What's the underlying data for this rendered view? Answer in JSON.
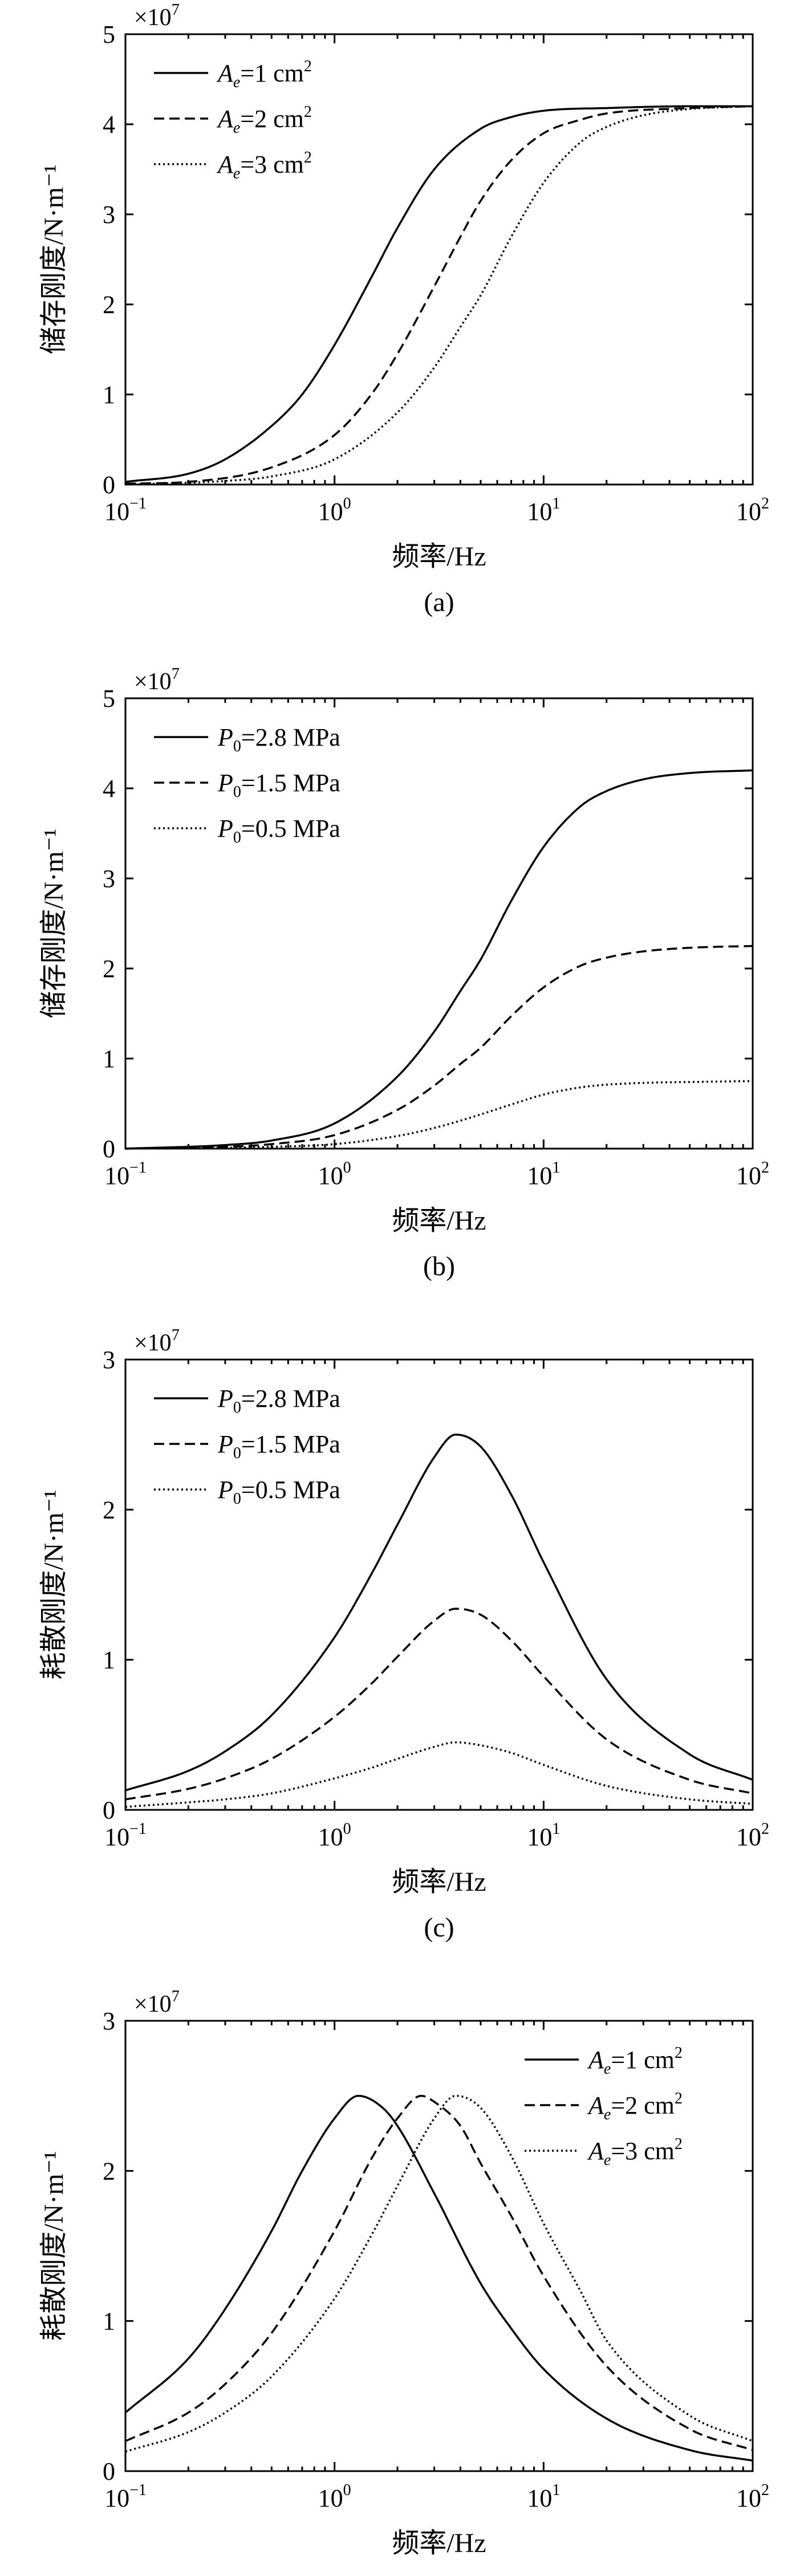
{
  "chart_data": [
    {
      "id": "a",
      "type": "line",
      "caption": "(a)",
      "xlabel": "频率/Hz",
      "ylabel": "储存刚度/N·m⁻¹",
      "y_multiplier": "×10",
      "y_multiplier_exp": "7",
      "xscale": "log",
      "xlim": [
        0.1,
        100
      ],
      "ylim": [
        0,
        5
      ],
      "xticks": [
        {
          "base": "10",
          "exp": "−1"
        },
        {
          "base": "10",
          "exp": "0"
        },
        {
          "base": "10",
          "exp": "1"
        },
        {
          "base": "10",
          "exp": "2"
        }
      ],
      "yticks": [
        "0",
        "1",
        "2",
        "3",
        "4",
        "5"
      ],
      "legend_position": "top-left",
      "series": [
        {
          "name_var": "A",
          "name_sub": "e",
          "name_rest": "=1 cm",
          "name_sup": "2",
          "style": "solid",
          "x": [
            0.1,
            0.2,
            0.3,
            0.5,
            0.7,
            1,
            1.5,
            2,
            3,
            5,
            7,
            10,
            20,
            50,
            100
          ],
          "y": [
            0.03,
            0.12,
            0.28,
            0.65,
            1.0,
            1.55,
            2.3,
            2.85,
            3.5,
            3.95,
            4.08,
            4.15,
            4.18,
            4.2,
            4.2
          ]
        },
        {
          "name_var": "A",
          "name_sub": "e",
          "name_rest": "=2 cm",
          "name_sup": "2",
          "style": "dashed",
          "x": [
            0.1,
            0.2,
            0.5,
            1,
            1.5,
            2,
            3,
            4,
            5,
            7,
            10,
            15,
            20,
            50,
            100
          ],
          "y": [
            0.01,
            0.03,
            0.19,
            0.55,
            1.0,
            1.45,
            2.2,
            2.75,
            3.15,
            3.6,
            3.9,
            4.05,
            4.12,
            4.18,
            4.2
          ]
        },
        {
          "name_var": "A",
          "name_sub": "e",
          "name_rest": "=3 cm",
          "name_sup": "2",
          "style": "dotted",
          "x": [
            0.1,
            0.3,
            0.5,
            1,
            2,
            3,
            4,
            5,
            7,
            10,
            15,
            20,
            30,
            50,
            100
          ],
          "y": [
            0.0,
            0.04,
            0.09,
            0.28,
            0.8,
            1.3,
            1.75,
            2.1,
            2.75,
            3.35,
            3.8,
            3.97,
            4.1,
            4.17,
            4.2
          ]
        }
      ]
    },
    {
      "id": "b",
      "type": "line",
      "caption": "(b)",
      "xlabel": "频率/Hz",
      "ylabel": "储存刚度/N·m⁻¹",
      "y_multiplier": "×10",
      "y_multiplier_exp": "7",
      "xscale": "log",
      "xlim": [
        0.1,
        100
      ],
      "ylim": [
        0,
        5
      ],
      "xticks": [
        {
          "base": "10",
          "exp": "−1"
        },
        {
          "base": "10",
          "exp": "0"
        },
        {
          "base": "10",
          "exp": "1"
        },
        {
          "base": "10",
          "exp": "2"
        }
      ],
      "yticks": [
        "0",
        "1",
        "2",
        "3",
        "4",
        "5"
      ],
      "legend_position": "top-left",
      "series": [
        {
          "name_var": "P",
          "name_sub": "0",
          "name_rest": "=2.8 MPa",
          "name_sup": "",
          "style": "solid",
          "x": [
            0.1,
            0.3,
            0.5,
            1,
            2,
            3,
            4,
            5,
            7,
            10,
            15,
            20,
            30,
            50,
            100
          ],
          "y": [
            0.0,
            0.04,
            0.09,
            0.28,
            0.8,
            1.3,
            1.75,
            2.1,
            2.75,
            3.35,
            3.8,
            3.97,
            4.1,
            4.17,
            4.2
          ]
        },
        {
          "name_var": "P",
          "name_sub": "0",
          "name_rest": "=1.5 MPa",
          "name_sup": "",
          "style": "dashed",
          "x": [
            0.1,
            0.3,
            0.5,
            1,
            2,
            3,
            4,
            5,
            7,
            10,
            15,
            20,
            30,
            50,
            100
          ],
          "y": [
            0.0,
            0.02,
            0.05,
            0.15,
            0.43,
            0.7,
            0.94,
            1.12,
            1.47,
            1.79,
            2.03,
            2.12,
            2.19,
            2.23,
            2.25
          ]
        },
        {
          "name_var": "P",
          "name_sub": "0",
          "name_rest": "=0.5 MPa",
          "name_sup": "",
          "style": "dotted",
          "x": [
            0.1,
            0.3,
            0.5,
            1,
            2,
            3,
            4,
            5,
            7,
            10,
            15,
            20,
            30,
            50,
            100
          ],
          "y": [
            0.0,
            0.01,
            0.02,
            0.05,
            0.14,
            0.23,
            0.31,
            0.38,
            0.49,
            0.6,
            0.68,
            0.71,
            0.73,
            0.74,
            0.75
          ]
        }
      ]
    },
    {
      "id": "c",
      "type": "line",
      "caption": "(c)",
      "xlabel": "频率/Hz",
      "ylabel": "耗散刚度/N·m⁻¹",
      "y_multiplier": "×10",
      "y_multiplier_exp": "7",
      "xscale": "log",
      "xlim": [
        0.1,
        100
      ],
      "ylim": [
        0,
        3
      ],
      "xticks": [
        {
          "base": "10",
          "exp": "−1"
        },
        {
          "base": "10",
          "exp": "0"
        },
        {
          "base": "10",
          "exp": "1"
        },
        {
          "base": "10",
          "exp": "2"
        }
      ],
      "yticks": [
        "0",
        "1",
        "2",
        "3"
      ],
      "legend_position": "top-left",
      "series": [
        {
          "name_var": "P",
          "name_sub": "0",
          "name_rest": "=2.8 MPa",
          "name_sup": "",
          "style": "solid",
          "x": [
            0.1,
            0.2,
            0.3,
            0.5,
            1,
            1.5,
            2,
            3,
            3.8,
            5,
            7,
            10,
            20,
            50,
            100
          ],
          "y": [
            0.13,
            0.26,
            0.39,
            0.63,
            1.15,
            1.57,
            1.9,
            2.35,
            2.5,
            2.42,
            2.1,
            1.65,
            0.87,
            0.37,
            0.2
          ]
        },
        {
          "name_var": "P",
          "name_sub": "0",
          "name_rest": "=1.5 MPa",
          "name_sup": "",
          "style": "dashed",
          "x": [
            0.1,
            0.2,
            0.3,
            0.5,
            1,
            1.5,
            2,
            3,
            3.8,
            5,
            7,
            10,
            20,
            50,
            100
          ],
          "y": [
            0.07,
            0.14,
            0.21,
            0.34,
            0.62,
            0.84,
            1.02,
            1.26,
            1.34,
            1.3,
            1.13,
            0.89,
            0.47,
            0.2,
            0.11
          ]
        },
        {
          "name_var": "P",
          "name_sub": "0",
          "name_rest": "=0.5 MPa",
          "name_sup": "",
          "style": "dotted",
          "x": [
            0.1,
            0.2,
            0.3,
            0.5,
            1,
            1.5,
            2,
            3,
            3.8,
            5,
            7,
            10,
            20,
            50,
            100
          ],
          "y": [
            0.02,
            0.05,
            0.07,
            0.11,
            0.21,
            0.28,
            0.34,
            0.42,
            0.45,
            0.43,
            0.38,
            0.3,
            0.16,
            0.07,
            0.04
          ]
        }
      ]
    },
    {
      "id": "d",
      "type": "line",
      "caption": "(d)",
      "xlabel": "频率/Hz",
      "ylabel": "耗散刚度/N·m⁻¹",
      "y_multiplier": "×10",
      "y_multiplier_exp": "7",
      "xscale": "log",
      "xlim": [
        0.1,
        100
      ],
      "ylim": [
        0,
        3
      ],
      "xticks": [
        {
          "base": "10",
          "exp": "−1"
        },
        {
          "base": "10",
          "exp": "0"
        },
        {
          "base": "10",
          "exp": "1"
        },
        {
          "base": "10",
          "exp": "2"
        }
      ],
      "yticks": [
        "0",
        "1",
        "2",
        "3"
      ],
      "legend_position": "top-right",
      "series": [
        {
          "name_var": "A",
          "name_sub": "e",
          "name_rest": "=1 cm",
          "name_sup": "2",
          "style": "solid",
          "x": [
            0.1,
            0.2,
            0.3,
            0.5,
            0.7,
            1,
            1.3,
            1.7,
            2,
            3,
            5,
            7,
            10,
            20,
            50,
            100
          ],
          "y": [
            0.39,
            0.75,
            1.08,
            1.6,
            2.0,
            2.35,
            2.5,
            2.42,
            2.3,
            1.85,
            1.25,
            0.95,
            0.68,
            0.35,
            0.14,
            0.07
          ]
        },
        {
          "name_var": "A",
          "name_sub": "e",
          "name_rest": "=2 cm",
          "name_sup": "2",
          "style": "dashed",
          "x": [
            0.1,
            0.2,
            0.3,
            0.5,
            1,
            1.5,
            2,
            2.6,
            3,
            4,
            5,
            7,
            10,
            20,
            50,
            100
          ],
          "y": [
            0.2,
            0.39,
            0.58,
            0.92,
            1.6,
            2.08,
            2.35,
            2.5,
            2.46,
            2.3,
            2.05,
            1.7,
            1.3,
            0.7,
            0.28,
            0.14
          ]
        },
        {
          "name_var": "A",
          "name_sub": "e",
          "name_rest": "=3 cm",
          "name_sup": "2",
          "style": "dotted",
          "x": [
            0.1,
            0.2,
            0.3,
            0.5,
            1,
            1.5,
            2,
            3,
            3.8,
            5,
            7,
            10,
            15,
            20,
            50,
            100
          ],
          "y": [
            0.13,
            0.26,
            0.39,
            0.63,
            1.15,
            1.57,
            1.9,
            2.35,
            2.5,
            2.42,
            2.1,
            1.65,
            1.2,
            0.87,
            0.37,
            0.2
          ]
        }
      ]
    }
  ]
}
